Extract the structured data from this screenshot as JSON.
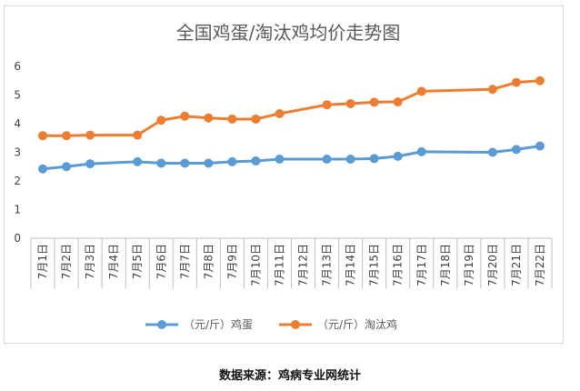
{
  "chart_data": {
    "type": "line",
    "title": "全国鸡蛋/淘汰鸡均价走势图",
    "categories": [
      "7月1日",
      "7月2日",
      "7月3日",
      "7月4日",
      "7月5日",
      "7月6日",
      "7月7日",
      "7月8日",
      "7月9日",
      "7月10日",
      "7月11日",
      "7月12日",
      "7月13日",
      "7月14日",
      "7月15日",
      "7月16日",
      "7月17日",
      "7月18日",
      "7月19日",
      "7月20日",
      "7月21日",
      "7月22日"
    ],
    "series": [
      {
        "name": "（元/斤）鸡蛋",
        "color": "#5b9bd5",
        "values": [
          2.42,
          2.5,
          2.6,
          null,
          2.67,
          2.62,
          2.62,
          2.62,
          2.67,
          2.7,
          2.76,
          null,
          2.76,
          2.76,
          2.78,
          2.86,
          3.02,
          null,
          null,
          3.0,
          3.1,
          3.22
        ]
      },
      {
        "name": "（元/斤）淘汰鸡",
        "color": "#ed7d31",
        "values": [
          3.58,
          3.58,
          3.6,
          null,
          3.6,
          4.12,
          4.26,
          4.2,
          4.16,
          4.16,
          4.35,
          null,
          4.66,
          4.7,
          4.75,
          4.76,
          5.13,
          null,
          null,
          5.2,
          5.44,
          5.5
        ]
      }
    ],
    "ylim": [
      0,
      6
    ],
    "yticks": [
      0,
      1,
      2,
      3,
      4,
      5,
      6
    ],
    "grid": false,
    "legend": "bottom",
    "xlabel": "",
    "ylabel": ""
  },
  "footer": {
    "source": "数据来源：鸡病专业网统计"
  }
}
